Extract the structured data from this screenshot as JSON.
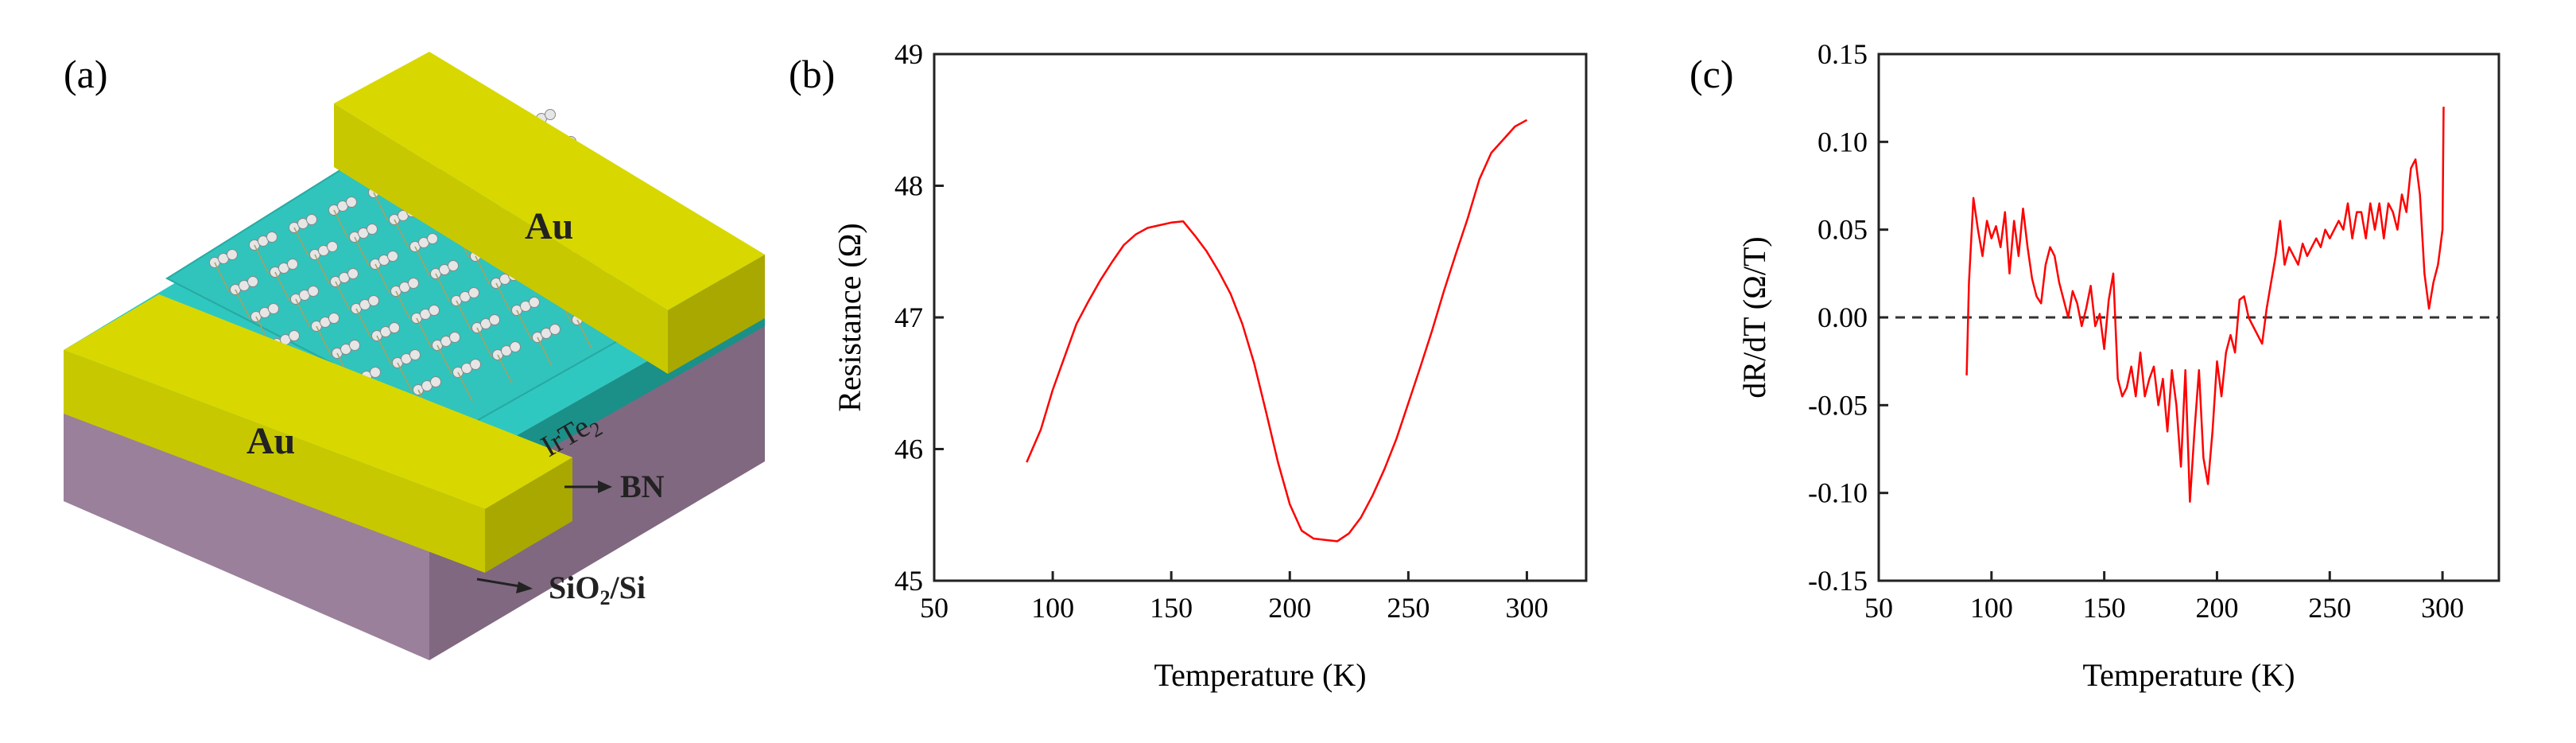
{
  "panels": [
    {
      "label": "(a)"
    },
    {
      "label": "(b)"
    },
    {
      "label": "(c)"
    }
  ],
  "device": {
    "electrode_labels": [
      "Au",
      "Au"
    ],
    "layers": [
      "IrTe",
      "BN",
      "SiO",
      "Si"
    ],
    "subscripts": [
      "2",
      "2"
    ],
    "colors": {
      "gold": "#c8c800",
      "gold_top": "#d8d800",
      "cyan": "#2fc8c0",
      "purple": "#a890a8",
      "atom": "#e6e6e6"
    }
  },
  "colors": {
    "curve": "#ff0000",
    "axis": "#222222",
    "zero_line": "#333333"
  },
  "chart_data": [
    {
      "type": "line",
      "xlabel": "Temperature (K)",
      "ylabel": "Resistance (Ω)",
      "xlim": [
        50,
        325
      ],
      "ylim": [
        45,
        49
      ],
      "xticks": [
        "50",
        "100",
        "150",
        "200",
        "250",
        "300"
      ],
      "yticks": [
        "45",
        "46",
        "47",
        "48",
        "49"
      ],
      "series": [
        {
          "x": [
            89,
            95,
            100,
            105,
            110,
            115,
            120,
            125,
            130,
            135,
            140,
            145,
            150,
            155,
            160,
            165,
            170,
            175,
            180,
            185,
            190,
            195,
            200,
            205,
            210,
            215,
            220,
            225,
            230,
            235,
            240,
            245,
            250,
            255,
            260,
            265,
            270,
            275,
            280,
            285,
            290,
            295,
            300
          ],
          "y": [
            45.9,
            46.15,
            46.45,
            46.7,
            46.95,
            47.12,
            47.28,
            47.42,
            47.55,
            47.63,
            47.68,
            47.7,
            47.72,
            47.73,
            47.62,
            47.5,
            47.35,
            47.18,
            46.95,
            46.65,
            46.28,
            45.9,
            45.58,
            45.38,
            45.32,
            45.31,
            45.3,
            45.36,
            45.48,
            45.65,
            45.85,
            46.08,
            46.35,
            46.62,
            46.9,
            47.2,
            47.48,
            47.75,
            48.05,
            48.25,
            48.35,
            48.45,
            48.5
          ]
        }
      ]
    },
    {
      "type": "line",
      "xlabel": "Temperature (K)",
      "ylabel": "dR/dT (Ω/T)",
      "xlim": [
        50,
        325
      ],
      "ylim": [
        -0.15,
        0.15
      ],
      "xticks": [
        "50",
        "100",
        "150",
        "200",
        "250",
        "300"
      ],
      "yticks": [
        "-0.15",
        "-0.10",
        "-0.05",
        "0.00",
        "0.05",
        "0.10",
        "0.15"
      ],
      "reference_line": {
        "y": 0.0,
        "style": "dashed"
      },
      "series": [
        {
          "x": [
            89,
            90,
            92,
            94,
            96,
            98,
            100,
            102,
            104,
            106,
            108,
            110,
            112,
            114,
            116,
            118,
            120,
            122,
            124,
            126,
            128,
            130,
            132,
            134,
            136,
            138,
            140,
            142,
            144,
            146,
            148,
            150,
            152,
            154,
            156,
            158,
            160,
            162,
            164,
            166,
            168,
            170,
            172,
            174,
            176,
            178,
            180,
            182,
            184,
            186,
            188,
            190,
            192,
            194,
            196,
            198,
            200,
            202,
            204,
            206,
            208,
            210,
            212,
            214,
            216,
            218,
            220,
            222,
            224,
            226,
            228,
            230,
            232,
            234,
            236,
            238,
            240,
            242,
            244,
            246,
            248,
            250,
            252,
            254,
            256,
            258,
            260,
            262,
            264,
            266,
            268,
            270,
            272,
            274,
            276,
            278,
            280,
            282,
            284,
            286,
            288,
            290,
            292,
            294,
            296,
            298,
            299,
            300,
            300.5
          ],
          "y": [
            -0.033,
            0.02,
            0.068,
            0.05,
            0.035,
            0.055,
            0.045,
            0.052,
            0.04,
            0.06,
            0.025,
            0.055,
            0.035,
            0.062,
            0.04,
            0.022,
            0.012,
            0.008,
            0.03,
            0.04,
            0.035,
            0.02,
            0.01,
            0.0,
            0.015,
            0.008,
            -0.005,
            0.005,
            0.018,
            -0.005,
            0.002,
            -0.018,
            0.01,
            0.025,
            -0.035,
            -0.045,
            -0.04,
            -0.028,
            -0.045,
            -0.02,
            -0.045,
            -0.035,
            -0.028,
            -0.05,
            -0.035,
            -0.065,
            -0.03,
            -0.05,
            -0.085,
            -0.03,
            -0.105,
            -0.065,
            -0.03,
            -0.08,
            -0.095,
            -0.065,
            -0.025,
            -0.045,
            -0.02,
            -0.01,
            -0.02,
            0.01,
            0.012,
            0.0,
            -0.005,
            -0.01,
            -0.015,
            0.005,
            0.02,
            0.035,
            0.055,
            0.03,
            0.04,
            0.035,
            0.03,
            0.042,
            0.035,
            0.04,
            0.045,
            0.04,
            0.05,
            0.045,
            0.05,
            0.055,
            0.05,
            0.065,
            0.045,
            0.06,
            0.06,
            0.045,
            0.065,
            0.05,
            0.065,
            0.045,
            0.065,
            0.06,
            0.05,
            0.07,
            0.06,
            0.085,
            0.09,
            0.07,
            0.025,
            0.005,
            0.02,
            0.03,
            0.04,
            0.05,
            0.12
          ]
        }
      ]
    }
  ]
}
